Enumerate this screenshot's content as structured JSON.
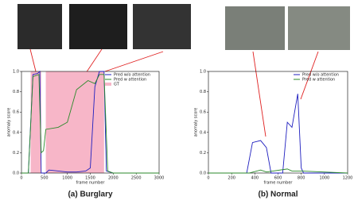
{
  "chart_data": [
    {
      "type": "line",
      "caption": "(a) Burglary",
      "xlabel": "frame number",
      "ylabel": "anomaly score",
      "xlim": [
        0,
        3000
      ],
      "ylim": [
        0,
        1
      ],
      "xticks": [
        0,
        500,
        1000,
        1500,
        2000,
        2500,
        3000
      ],
      "yticks": [
        {
          "value": 0,
          "label": "0.0"
        },
        {
          "value": 0.2,
          "label": "0.2"
        },
        {
          "value": 0.4,
          "label": "0.4"
        },
        {
          "value": 0.6,
          "label": "0.6"
        },
        {
          "value": 0.8,
          "label": "0.8"
        },
        {
          "value": 1,
          "label": "1.0"
        }
      ],
      "shaded_regions": [
        [
          200,
          430
        ],
        [
          530,
          1800
        ]
      ],
      "shaded_label": "GT",
      "shaded_color": "#f7b6c8",
      "series": [
        {
          "name": "Pred w/o attention",
          "color": "#1f1fbf",
          "x": [
            0,
            150,
            250,
            350,
            400,
            430,
            530,
            600,
            800,
            1000,
            1200,
            1400,
            1500,
            1600,
            1700,
            1800,
            1850,
            2000,
            3000
          ],
          "values": [
            0,
            0,
            0.97,
            0.98,
            1,
            0,
            0,
            0.03,
            0.02,
            0.01,
            0.01,
            0.02,
            0.05,
            0.85,
            1,
            1,
            0.02,
            0,
            0
          ]
        },
        {
          "name": "Pred w attention",
          "color": "#2a8a2a",
          "x": [
            0,
            150,
            250,
            380,
            430,
            480,
            530,
            800,
            1000,
            1200,
            1450,
            1600,
            1700,
            1800,
            1880,
            2000,
            3000
          ],
          "values": [
            0,
            0,
            0.95,
            0.97,
            0.2,
            0.22,
            0.43,
            0.45,
            0.5,
            0.82,
            0.91,
            0.88,
            0.97,
            0.97,
            0.02,
            0,
            0
          ]
        }
      ]
    },
    {
      "type": "line",
      "caption": "(b) Normal",
      "xlabel": "frame number",
      "ylabel": "anomaly score",
      "xlim": [
        0,
        1200
      ],
      "ylim": [
        0,
        1
      ],
      "xticks": [
        0,
        200,
        400,
        600,
        800,
        1000,
        1200
      ],
      "yticks": [
        {
          "value": 0,
          "label": "0.0"
        },
        {
          "value": 0.2,
          "label": "0.2"
        },
        {
          "value": 0.4,
          "label": "0.4"
        },
        {
          "value": 0.6,
          "label": "0.6"
        },
        {
          "value": 0.8,
          "label": "0.8"
        },
        {
          "value": 1,
          "label": "1.0"
        }
      ],
      "series": [
        {
          "name": "Pred w/o attention",
          "color": "#1f1fbf",
          "x": [
            0,
            330,
            380,
            450,
            500,
            540,
            640,
            680,
            720,
            770,
            800,
            820,
            1200
          ],
          "values": [
            0,
            0,
            0.3,
            0.32,
            0.25,
            0,
            0,
            0.5,
            0.45,
            0.78,
            0.05,
            0,
            0
          ]
        },
        {
          "name": "Pred w attention",
          "color": "#2a8a2a",
          "x": [
            0,
            350,
            450,
            500,
            680,
            720,
            800,
            1200
          ],
          "values": [
            0,
            0,
            0.03,
            0.01,
            0.04,
            0.02,
            0.02,
            0
          ]
        }
      ]
    }
  ]
}
